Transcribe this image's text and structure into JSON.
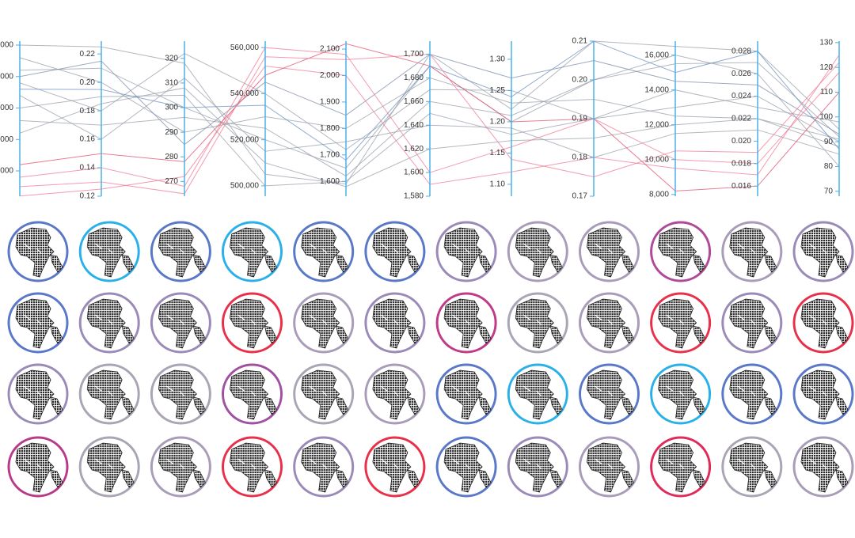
{
  "chart_data": {
    "type": "parallel",
    "axes": [
      {
        "lim": [
          1950,
          51260
        ],
        "ticks": [
          {
            "value": 50000,
            "label": "0,000"
          },
          {
            "value": 40000,
            "label": "0,000"
          },
          {
            "value": 30000,
            "label": ",000"
          },
          {
            "value": 20000,
            "label": "0,000"
          },
          {
            "value": 10000,
            "label": ",000"
          }
        ]
      },
      {
        "lim": [
          0.12,
          0.229
        ],
        "ticks": [
          0.22,
          {
            "value": 0.2,
            "label": "0.20"
          },
          0.18,
          0.16,
          0.14,
          0.12
        ]
      },
      {
        "lim": [
          264,
          327
        ],
        "ticks": [
          320,
          310,
          300,
          290,
          280,
          270
        ]
      },
      {
        "lim": [
          495500,
          562800
        ],
        "ticks": [
          {
            "value": 560000,
            "label": "560,000"
          },
          {
            "value": 540000,
            "label": "540,000"
          },
          {
            "value": 520000,
            "label": "520,000"
          },
          {
            "value": 500000,
            "label": "500,000"
          }
        ]
      },
      {
        "lim": [
          1544,
          2130
        ],
        "ticks": [
          {
            "value": 2100,
            "label": "2,100"
          },
          {
            "value": 2000,
            "label": "2,000"
          },
          {
            "value": 1900,
            "label": "1,900"
          },
          {
            "value": 1800,
            "label": "1,800"
          },
          {
            "value": 1700,
            "label": "1,700"
          },
          {
            "value": 1600,
            "label": "1,600"
          }
        ]
      },
      {
        "lim": [
          1580,
          1711
        ],
        "ticks": [
          {
            "value": 1700,
            "label": "1,700"
          },
          {
            "value": 1680,
            "label": "1,680"
          },
          {
            "value": 1660,
            "label": "1,660"
          },
          {
            "value": 1640,
            "label": "1,640"
          },
          {
            "value": 1620,
            "label": "1,620"
          },
          {
            "value": 1600,
            "label": "1,600"
          },
          {
            "value": 1580,
            "label": "1,580"
          }
        ]
      },
      {
        "lim": [
          1.081,
          1.329
        ],
        "ticks": [
          {
            "value": 1.3,
            "label": "1.30"
          },
          1.25,
          {
            "value": 1.2,
            "label": "1.20"
          },
          1.15,
          {
            "value": 1.1,
            "label": "1.10"
          }
        ]
      },
      {
        "lim": [
          0.17,
          0.21
        ],
        "ticks": [
          0.21,
          {
            "value": 0.2,
            "label": "0.20"
          },
          0.19,
          0.18,
          0.17
        ]
      },
      {
        "lim": [
          7900,
          16800
        ],
        "ticks": [
          {
            "value": 16000,
            "label": "16,000"
          },
          {
            "value": 14000,
            "label": "14,000"
          },
          {
            "value": 12000,
            "label": "12,000"
          },
          {
            "value": 10000,
            "label": "10,000"
          },
          {
            "value": 8000,
            "label": "8,000"
          }
        ]
      },
      {
        "lim": [
          0.0151,
          0.0289
        ],
        "ticks": [
          0.028,
          0.026,
          0.024,
          0.022,
          {
            "value": 0.02,
            "label": "0.020"
          },
          0.018,
          0.016
        ]
      },
      {
        "lim": [
          68,
          130.6
        ],
        "ticks": [
          130,
          120,
          110,
          100,
          90,
          80,
          70
        ]
      }
    ],
    "series": [
      {
        "color": "#9aa0ab",
        "values": [
          50000,
          0.225,
          318,
          505000,
          1590,
          1700,
          1.22,
          0.21,
          16500,
          0.028,
          95
        ]
      },
      {
        "color": "#9aa0ab",
        "values": [
          42000,
          0.21,
          300,
          520000,
          1650,
          1690,
          1.2,
          0.2,
          15500,
          0.027,
          92
        ]
      },
      {
        "color": "#9aa0ab",
        "values": [
          38000,
          0.18,
          322,
          540000,
          1720,
          1670,
          1.25,
          0.19,
          14000,
          0.023,
          98
        ]
      },
      {
        "color": "#9aa0ab",
        "values": [
          30000,
          0.19,
          305,
          500000,
          1600,
          1650,
          1.18,
          0.19,
          13000,
          0.024,
          90
        ]
      },
      {
        "color": "#9aa0ab",
        "values": [
          46000,
          0.2,
          290,
          530000,
          1800,
          1680,
          1.23,
          0.195,
          12500,
          0.022,
          88
        ]
      },
      {
        "color": "#9aa0ab",
        "values": [
          34000,
          0.16,
          312,
          515000,
          1750,
          1640,
          1.19,
          0.18,
          11500,
          0.021,
          85
        ]
      },
      {
        "color": "#9aa0ab",
        "values": [
          26000,
          0.17,
          296,
          525000,
          1620,
          1660,
          1.21,
          0.2,
          16000,
          0.026,
          80
        ]
      },
      {
        "color": "#7f8ea8",
        "values": [
          40000,
          0.215,
          285,
          545000,
          1850,
          1700,
          1.27,
          0.205,
          14500,
          0.025,
          93
        ]
      },
      {
        "color": "#9aa0ab",
        "values": [
          22000,
          0.185,
          308,
          510000,
          1580,
          1620,
          1.17,
          0.185,
          12000,
          0.022,
          91
        ]
      },
      {
        "color": "#6c8fc0",
        "values": [
          36000,
          0.195,
          300,
          535000,
          1680,
          1690,
          1.24,
          0.21,
          15000,
          0.028,
          87
        ]
      },
      {
        "color": "#f07a94",
        "values": [
          8000,
          0.14,
          268,
          560000,
          2080,
          1600,
          1.16,
          0.19,
          10000,
          0.018,
          118
        ]
      },
      {
        "color": "#f07a94",
        "values": [
          2000,
          0.125,
          272,
          552000,
          2000,
          1590,
          1.12,
          0.18,
          9500,
          0.017,
          125
        ]
      },
      {
        "color": "#e0506e",
        "values": [
          12000,
          0.15,
          278,
          548000,
          2120,
          1690,
          1.2,
          0.19,
          8200,
          0.016,
          110
        ]
      },
      {
        "color": "#f07a94",
        "values": [
          5000,
          0.13,
          265,
          556000,
          2060,
          1700,
          1.14,
          0.175,
          10500,
          0.019,
          122
        ]
      }
    ]
  },
  "thumbnails": {
    "ring_colors": [
      "#5a78c8",
      "#2ab0e8",
      "#5a78c8",
      "#2ab0e8",
      "#5a78c8",
      "#5a78c8",
      "#9a8ab8",
      "#a89cb8",
      "#a89cb8",
      "#b04a98",
      "#a89cb8",
      "#9a8ab8",
      "#5a78c8",
      "#9a8ab8",
      "#9a8ab8",
      "#e8304a",
      "#a89cb8",
      "#9a8ab8",
      "#c03a88",
      "#aaa4b4",
      "#a89cb8",
      "#e8304a",
      "#9a8ab8",
      "#e8304a",
      "#9a8ab8",
      "#aaa4b4",
      "#aaa4b4",
      "#a050a0",
      "#aaa4b4",
      "#a89cb8",
      "#5a78c8",
      "#2ab0e8",
      "#5a78c8",
      "#2ab0e8",
      "#5a78c8",
      "#5a78c8",
      "#b83a88",
      "#aaa4b4",
      "#a89cb8",
      "#e8304a",
      "#9a8ab8",
      "#e8304a",
      "#5a78c8",
      "#9a8ab8",
      "#a89cb8",
      "#e02a5a",
      "#aaa4b4",
      "#a89cb8"
    ]
  }
}
